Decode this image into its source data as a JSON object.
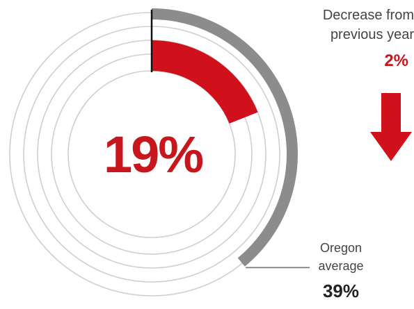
{
  "chart_data": {
    "type": "radial-progress",
    "value": 19,
    "value_label": "19%",
    "comparison": {
      "label_line1": "Decrease from",
      "label_line2": "previous year",
      "value": 2,
      "value_label": "2%",
      "direction": "down"
    },
    "benchmark": {
      "label_line1": "Oregon",
      "label_line2": "average",
      "value": 39,
      "value_label": "39%"
    },
    "max": 100
  },
  "colors": {
    "value_arc": "#d0101a",
    "benchmark_arc": "#8c8c8c",
    "rings": "#cfcfcf",
    "arrow": "#d0101a"
  }
}
